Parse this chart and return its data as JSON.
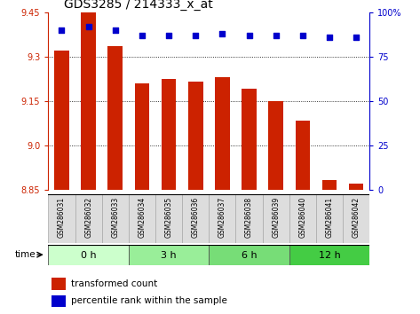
{
  "title": "GDS3285 / 214333_x_at",
  "samples": [
    "GSM286031",
    "GSM286032",
    "GSM286033",
    "GSM286034",
    "GSM286035",
    "GSM286036",
    "GSM286037",
    "GSM286038",
    "GSM286039",
    "GSM286040",
    "GSM286041",
    "GSM286042"
  ],
  "bar_values": [
    9.32,
    9.45,
    9.335,
    9.21,
    9.225,
    9.215,
    9.23,
    9.193,
    9.15,
    9.085,
    8.885,
    8.873
  ],
  "percentile_values": [
    90,
    92,
    90,
    87,
    87,
    87,
    88,
    87,
    87,
    87,
    86,
    86
  ],
  "ylim_left": [
    8.85,
    9.45
  ],
  "ylim_right": [
    0,
    100
  ],
  "yticks_left": [
    8.85,
    9.0,
    9.15,
    9.3,
    9.45
  ],
  "yticks_right": [
    0,
    25,
    50,
    75,
    100
  ],
  "bar_color": "#cc2200",
  "dot_color": "#0000cc",
  "gridline_color": "#000000",
  "bg_sample_box": "#dddddd",
  "bg_time_group_colors": [
    "#ccffcc",
    "#99ee99",
    "#77dd77",
    "#44cc44"
  ],
  "time_group_labels": [
    "0 h",
    "3 h",
    "6 h",
    "12 h"
  ],
  "time_group_ranges": [
    [
      0,
      2
    ],
    [
      3,
      5
    ],
    [
      6,
      8
    ],
    [
      9,
      11
    ]
  ],
  "xlabel_group": "time",
  "legend_bar_label": "transformed count",
  "legend_dot_label": "percentile rank within the sample",
  "tick_fontsize": 7,
  "sample_fontsize": 5.5,
  "title_fontsize": 10,
  "group_fontsize": 8,
  "legend_fontsize": 7.5
}
